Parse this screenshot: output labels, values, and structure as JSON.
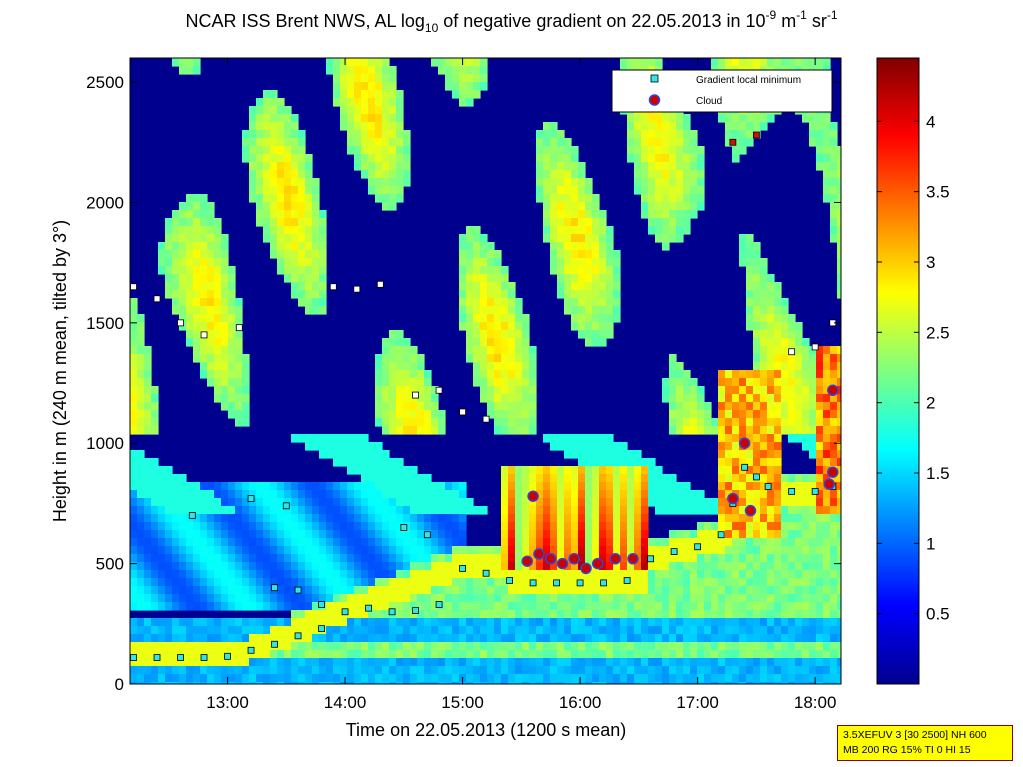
{
  "title": {
    "prefix": "NCAR ISS Brent NWS, AL log",
    "sub": "10",
    "middle": " of negative gradient on 22.05.2013 in 10",
    "exp1": "-9",
    "unit1": " m",
    "exp2": "-1",
    "unit2": " sr",
    "exp3": "-1"
  },
  "footnote": {
    "line1": "3.5XEFUV 3 [30 2500] NH 600",
    "line2": "MB 200 RG 15% TI 0 HI 15"
  },
  "chart_data": {
    "type": "heatmap",
    "xlabel": "Time on 22.05.2013 (1200 s mean)",
    "ylabel": "Height in m (240 m mean, tilted by 3°)",
    "xlim": [
      12.17,
      18.22
    ],
    "ylim": [
      0,
      2600
    ],
    "xticks": [
      13,
      14,
      15,
      16,
      17,
      18
    ],
    "xtick_labels": [
      "13:00",
      "14:00",
      "15:00",
      "16:00",
      "17:00",
      "18:00"
    ],
    "yticks": [
      0,
      500,
      1000,
      1500,
      2000,
      2500
    ],
    "ytick_labels": [
      "0",
      "500",
      "1000",
      "1500",
      "2000",
      "2500"
    ],
    "colorbar": {
      "range": [
        0,
        4.45
      ],
      "ticks": [
        0.5,
        1,
        1.5,
        2,
        2.5,
        3,
        3.5,
        4
      ],
      "tick_labels": [
        "0.5",
        "1",
        "1.5",
        "2",
        "2.5",
        "3",
        "3.5",
        "4"
      ],
      "colormap": "jet"
    },
    "legend": {
      "placement": "top-right",
      "entries": [
        {
          "label": "Gradient local minimum",
          "color": "#33e6e6"
        },
        {
          "label": "Cloud",
          "color": "#cc0000"
        }
      ]
    },
    "series": [
      {
        "name": "Gradient local minimum",
        "points": [
          [
            12.2,
            110
          ],
          [
            12.4,
            110
          ],
          [
            12.6,
            110
          ],
          [
            12.8,
            110
          ],
          [
            13.0,
            115
          ],
          [
            13.2,
            140
          ],
          [
            13.4,
            165
          ],
          [
            13.6,
            200
          ],
          [
            13.8,
            230
          ],
          [
            14.0,
            300
          ],
          [
            14.2,
            315
          ],
          [
            14.4,
            300
          ],
          [
            14.6,
            305
          ],
          [
            14.8,
            330
          ],
          [
            15.0,
            480
          ],
          [
            15.2,
            460
          ],
          [
            15.4,
            430
          ],
          [
            15.6,
            420
          ],
          [
            15.8,
            420
          ],
          [
            16.0,
            420
          ],
          [
            16.2,
            420
          ],
          [
            16.4,
            430
          ],
          [
            16.6,
            520
          ],
          [
            16.8,
            550
          ],
          [
            17.0,
            570
          ],
          [
            17.2,
            620
          ],
          [
            17.3,
            750
          ],
          [
            17.4,
            900
          ],
          [
            17.5,
            860
          ],
          [
            17.6,
            820
          ],
          [
            17.8,
            800
          ],
          [
            18.0,
            800
          ],
          [
            18.15,
            820
          ],
          [
            12.2,
            1650
          ],
          [
            12.4,
            1600
          ],
          [
            12.6,
            1500
          ],
          [
            12.8,
            1450
          ],
          [
            13.1,
            1480
          ],
          [
            13.4,
            400
          ],
          [
            13.6,
            390
          ],
          [
            13.8,
            330
          ],
          [
            13.2,
            770
          ],
          [
            13.5,
            740
          ],
          [
            13.9,
            1650
          ],
          [
            14.1,
            1640
          ],
          [
            14.3,
            1660
          ],
          [
            14.6,
            1200
          ],
          [
            14.8,
            1220
          ],
          [
            15.0,
            1130
          ],
          [
            15.2,
            1100
          ],
          [
            17.8,
            1380
          ],
          [
            18.0,
            1400
          ],
          [
            18.15,
            1500
          ],
          [
            12.7,
            700
          ],
          [
            14.5,
            650
          ],
          [
            14.7,
            620
          ],
          [
            17.3,
            2250
          ],
          [
            17.5,
            2280
          ]
        ]
      },
      {
        "name": "Cloud",
        "points": [
          [
            15.6,
            780
          ],
          [
            15.55,
            510
          ],
          [
            15.65,
            540
          ],
          [
            15.75,
            520
          ],
          [
            15.85,
            500
          ],
          [
            15.95,
            520
          ],
          [
            16.05,
            480
          ],
          [
            16.15,
            500
          ],
          [
            16.3,
            520
          ],
          [
            16.45,
            520
          ],
          [
            17.3,
            770
          ],
          [
            17.4,
            1000
          ],
          [
            17.45,
            720
          ],
          [
            18.15,
            1220
          ],
          [
            18.15,
            880
          ],
          [
            18.12,
            830
          ]
        ]
      }
    ]
  }
}
